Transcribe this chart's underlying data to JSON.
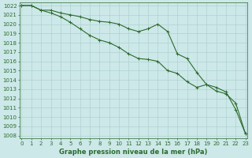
{
  "title": "Graphe pression niveau de la mer (hPa)",
  "background_color": "#cce8e8",
  "grid_color": "#aacccc",
  "line_color": "#2d6a2d",
  "marker_color": "#2d6a2d",
  "x_values": [
    0,
    1,
    2,
    3,
    4,
    5,
    6,
    7,
    8,
    9,
    10,
    11,
    12,
    13,
    14,
    15,
    16,
    17,
    18,
    19,
    20,
    21,
    22,
    23
  ],
  "line1": [
    1022,
    1022,
    1021.5,
    1021.5,
    1021.2,
    1021.0,
    1020.8,
    1020.5,
    1020.3,
    1020.2,
    1020.0,
    1019.5,
    1019.2,
    1019.5,
    1020.0,
    1019.2,
    1016.8,
    1016.3,
    1014.8,
    1013.5,
    1012.8,
    1012.5,
    1011.5,
    1008.2
  ],
  "line2": [
    1022,
    1022,
    1021.5,
    1021.2,
    1020.8,
    1020.2,
    1019.5,
    1018.8,
    1018.3,
    1018.0,
    1017.5,
    1016.8,
    1016.3,
    1016.2,
    1016.0,
    1015.0,
    1014.7,
    1013.8,
    1013.2,
    1013.5,
    1013.2,
    1012.7,
    1010.8,
    1008.2
  ],
  "ylim_min": 1008,
  "ylim_max": 1022,
  "xlim_min": 0,
  "xlim_max": 23,
  "yticks": [
    1008,
    1009,
    1010,
    1011,
    1012,
    1013,
    1014,
    1015,
    1016,
    1017,
    1018,
    1019,
    1020,
    1021,
    1022
  ],
  "xticks": [
    0,
    1,
    2,
    3,
    4,
    5,
    6,
    7,
    8,
    9,
    10,
    11,
    12,
    13,
    14,
    15,
    16,
    17,
    18,
    19,
    20,
    21,
    22,
    23
  ],
  "tick_fontsize": 5.0,
  "title_fontsize": 6.0,
  "linewidth": 0.8,
  "markersize": 2.5,
  "markeredgewidth": 0.7
}
